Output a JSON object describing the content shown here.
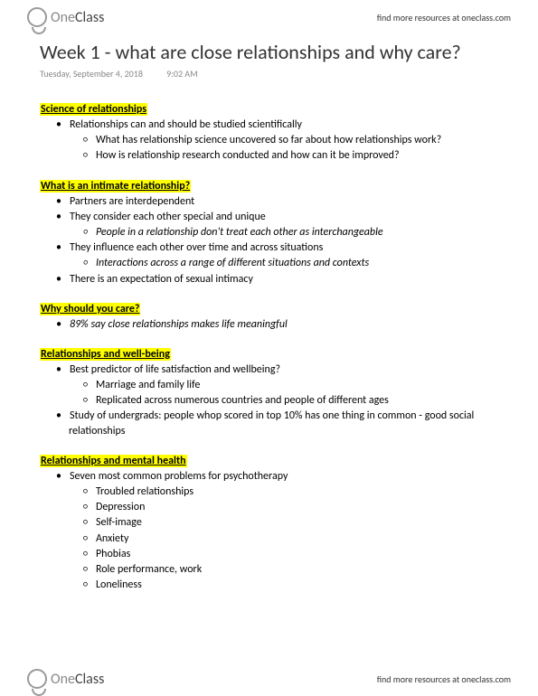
{
  "brand": {
    "part1": "One",
    "part2": "Class"
  },
  "header_link": "find more resources at oneclass.com",
  "footer_link": "find more resources at oneclass.com",
  "title": "Week 1 - what are close relationships and why care?",
  "meta": {
    "date": "Tuesday, September 4, 2018",
    "time": "9:02 AM"
  },
  "sections": {
    "s1": {
      "head": "Science of relationships",
      "i1": "Relationships can and should be studied scientifically",
      "i1a": "What has relationship science uncovered so far about how relationships work?",
      "i1b": "How is relationship research conducted and how can it be improved?"
    },
    "s2": {
      "head": "What is an intimate relationship?",
      "i1": "Partners are interdependent",
      "i2": "They consider each other special and unique",
      "i2a": "People in a relationship don't treat each other as interchangeable",
      "i3": "They influence each other over time and across situations",
      "i3a": "Interactions across a range of different situations and contexts",
      "i4": "There is an expectation of sexual intimacy"
    },
    "s3": {
      "head": "Why should you care?",
      "i1": "89% say close relationships makes life meaningful"
    },
    "s4": {
      "head": "Relationships and well-being",
      "i1": "Best predictor of life satisfaction and wellbeing?",
      "i1a": "Marriage and family life",
      "i1b": "Replicated across numerous countries and people of different ages",
      "i2": "Study of undergrads: people whop scored in top 10% has one thing in common - good social relationships"
    },
    "s5": {
      "head": "Relationships and mental health",
      "i1": "Seven most common problems for psychotherapy",
      "i1a": "Troubled relationships",
      "i1b": "Depression",
      "i1c": "Self-image",
      "i1d": "Anxiety",
      "i1e": "Phobias",
      "i1f": "Role performance, work",
      "i1g": "Loneliness"
    }
  }
}
